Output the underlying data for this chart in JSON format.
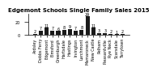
{
  "title": "Edgemont Schools Single Family Sales 2015",
  "categories": [
    "Ardsley",
    "Dobbs Ferry",
    "Edgemont",
    "Elmsford",
    "Greenburgh",
    "Hartsdale",
    "Hastings",
    "Irvington",
    "Larchmont",
    "Mamaroneck",
    "New Castle",
    "Pelham",
    "Pleasantville",
    "Rye Neck",
    "Scarsdale",
    "Tarrytown"
  ],
  "values": [
    2,
    7,
    11,
    7,
    6,
    8,
    9,
    7,
    8,
    29,
    11,
    3,
    3,
    2,
    1,
    2
  ],
  "bar_color": "#1a1a1a",
  "title_fontsize": 5,
  "label_fontsize": 3.5,
  "value_fontsize": 3.5,
  "ylim": [
    0,
    33
  ],
  "background_color": "#ffffff"
}
